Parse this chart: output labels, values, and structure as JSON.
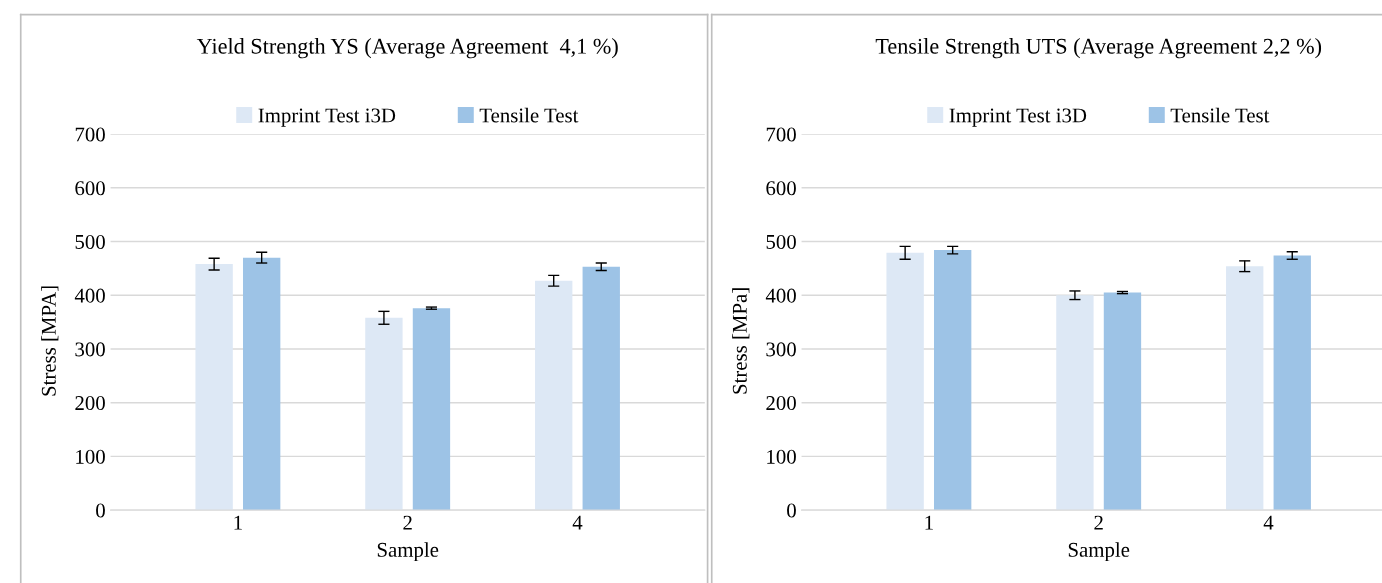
{
  "chart_data": [
    {
      "type": "bar",
      "title": "Yield Strength YS (Average Agreement  4,1 %)",
      "xlabel": "Sample",
      "ylabel": "Stress [MPA]",
      "categories": [
        "1",
        "2",
        "4"
      ],
      "ylim": [
        0,
        700
      ],
      "yticks": [
        0,
        100,
        200,
        300,
        400,
        500,
        600,
        700
      ],
      "grid": "y",
      "legend": "top",
      "series": [
        {
          "name": "Imprint Test i3D",
          "color": "#dde8f5",
          "values": [
            458,
            358,
            427
          ],
          "errors": [
            11,
            12,
            10
          ]
        },
        {
          "name": "Tensile Test",
          "color": "#9dc3e6",
          "values": [
            470,
            376,
            453
          ],
          "errors": [
            10,
            2,
            7
          ]
        }
      ]
    },
    {
      "type": "bar",
      "title": "Tensile Strength UTS (Average Agreement 2,2 %)",
      "xlabel": "Sample",
      "ylabel": "Stress [MPa]",
      "categories": [
        "1",
        "2",
        "4"
      ],
      "ylim": [
        0,
        700
      ],
      "yticks": [
        0,
        100,
        200,
        300,
        400,
        500,
        600,
        700
      ],
      "grid": "y",
      "legend": "top",
      "series": [
        {
          "name": "Imprint Test i3D",
          "color": "#dde8f5",
          "values": [
            479,
            400,
            454
          ],
          "errors": [
            12,
            8,
            10
          ]
        },
        {
          "name": "Tensile Test",
          "color": "#9dc3e6",
          "values": [
            484,
            405,
            474
          ],
          "errors": [
            7,
            2,
            7
          ]
        }
      ]
    }
  ]
}
